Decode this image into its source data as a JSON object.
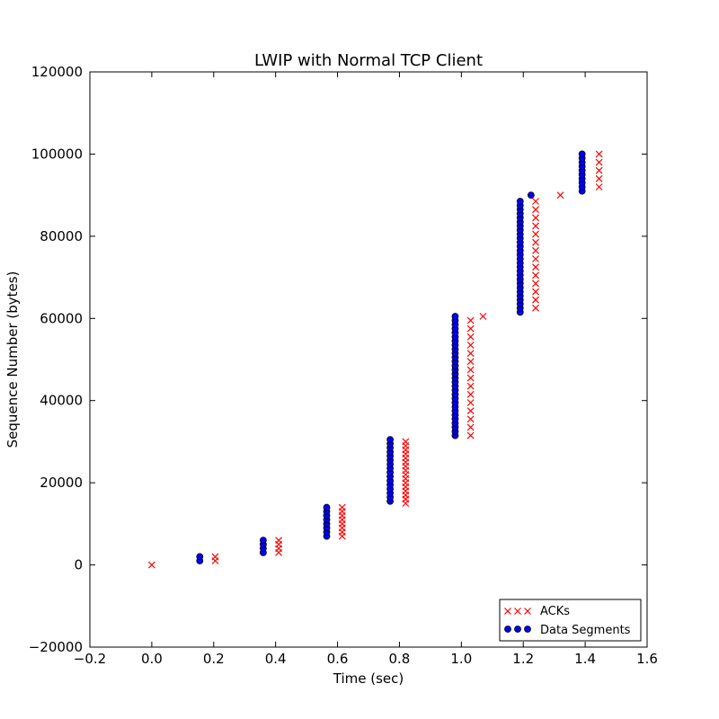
{
  "chart_data": {
    "type": "scatter",
    "title": "LWIP with Normal TCP Client",
    "xlabel": "Time (sec)",
    "ylabel": "Sequence Number (bytes)",
    "xlim": [
      -0.2,
      1.6
    ],
    "ylim": [
      -20000,
      120000
    ],
    "xticks": [
      -0.2,
      0.0,
      0.2,
      0.4,
      0.6,
      0.8,
      1.0,
      1.2,
      1.4,
      1.6
    ],
    "xtick_labels": [
      "−0.2",
      "0.0",
      "0.2",
      "0.4",
      "0.6",
      "0.8",
      "1.0",
      "1.2",
      "1.4",
      "1.6"
    ],
    "yticks": [
      -20000,
      0,
      20000,
      40000,
      60000,
      80000,
      100000,
      120000
    ],
    "ytick_labels": [
      "−20000",
      "0",
      "20000",
      "40000",
      "60000",
      "80000",
      "100000",
      "120000"
    ],
    "grid": false,
    "legend_position": "lower-right",
    "series": [
      {
        "name": "ACKs",
        "marker": "x",
        "color": "#ff0000",
        "groups": [
          {
            "x": 0.0,
            "y_start": 0,
            "y_end": 0,
            "step": 1000
          },
          {
            "x": 0.205,
            "y_start": 1000,
            "y_end": 2000,
            "step": 1000
          },
          {
            "x": 0.41,
            "y_start": 3000,
            "y_end": 6000,
            "step": 1000
          },
          {
            "x": 0.615,
            "y_start": 7000,
            "y_end": 14000,
            "step": 1000
          },
          {
            "x": 0.82,
            "y_start": 15000,
            "y_end": 30000,
            "step": 1000
          },
          {
            "x": 1.03,
            "y_start": 31500,
            "y_end": 59500,
            "step": 2000
          },
          {
            "x": 1.07,
            "y_start": 60500,
            "y_end": 60500,
            "step": 1000
          },
          {
            "x": 1.24,
            "y_start": 62500,
            "y_end": 89000,
            "step": 2000
          },
          {
            "x": 1.32,
            "y_start": 90000,
            "y_end": 90000,
            "step": 1000
          },
          {
            "x": 1.445,
            "y_start": 92000,
            "y_end": 100000,
            "step": 2000
          }
        ]
      },
      {
        "name": "Data Segments",
        "marker": "o",
        "color": "#0000ff",
        "groups": [
          {
            "x": 0.155,
            "y_start": 1000,
            "y_end": 2000,
            "step": 1000
          },
          {
            "x": 0.36,
            "y_start": 3000,
            "y_end": 6000,
            "step": 1000
          },
          {
            "x": 0.565,
            "y_start": 7000,
            "y_end": 14000,
            "step": 1000
          },
          {
            "x": 0.77,
            "y_start": 15500,
            "y_end": 30500,
            "step": 1000
          },
          {
            "x": 0.98,
            "y_start": 31500,
            "y_end": 60500,
            "step": 1000
          },
          {
            "x": 1.19,
            "y_start": 61500,
            "y_end": 89000,
            "step": 1000
          },
          {
            "x": 1.225,
            "y_start": 90000,
            "y_end": 90000,
            "step": 1000
          },
          {
            "x": 1.39,
            "y_start": 91000,
            "y_end": 100000,
            "step": 1000
          }
        ]
      }
    ]
  }
}
